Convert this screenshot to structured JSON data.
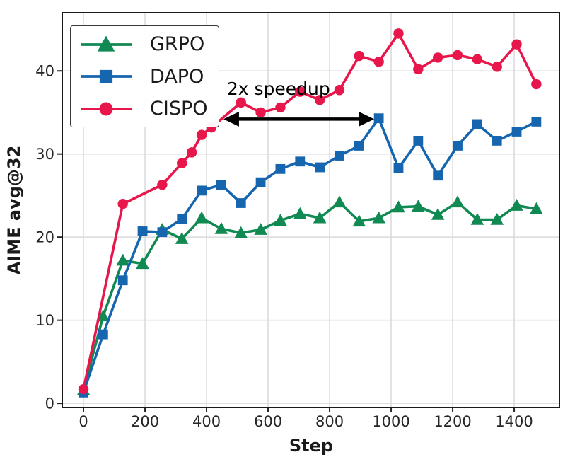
{
  "chart_data": {
    "type": "line",
    "title": "",
    "xlabel": "Step",
    "ylabel": "AIME avg@32",
    "xlim": [
      -69,
      1547
    ],
    "ylim": [
      -0.5,
      47.0
    ],
    "xticks": [
      0,
      200,
      400,
      600,
      800,
      1000,
      1200,
      1400
    ],
    "yticks": [
      0,
      10,
      20,
      30,
      40
    ],
    "grid": true,
    "legend_position": "upper-left",
    "series": [
      {
        "name": "GRPO",
        "color": "#108a52",
        "marker": "triangle-up",
        "x": [
          0,
          64,
          128,
          192,
          256,
          320,
          384,
          448,
          512,
          576,
          640,
          704,
          768,
          832,
          896,
          960,
          1024,
          1088,
          1152,
          1216,
          1280,
          1344,
          1408,
          1472
        ],
        "values": [
          1.6,
          10.5,
          17.2,
          16.8,
          20.9,
          19.8,
          22.3,
          21.0,
          20.5,
          20.9,
          22.0,
          22.8,
          22.3,
          24.2,
          21.9,
          22.3,
          23.6,
          23.7,
          22.7,
          24.2,
          22.1,
          22.1,
          23.8,
          23.4
        ]
      },
      {
        "name": "DAPO",
        "color": "#1565af",
        "marker": "square",
        "x": [
          0,
          64,
          128,
          192,
          256,
          320,
          384,
          448,
          512,
          576,
          640,
          704,
          768,
          832,
          896,
          960,
          1024,
          1088,
          1152,
          1216,
          1280,
          1344,
          1408,
          1472
        ],
        "values": [
          1.3,
          8.3,
          14.8,
          20.7,
          20.6,
          22.2,
          25.6,
          26.3,
          24.1,
          26.6,
          28.2,
          29.1,
          28.4,
          29.8,
          31.0,
          34.3,
          28.3,
          31.6,
          27.4,
          31.0,
          33.6,
          31.6,
          32.7,
          33.9
        ]
      },
      {
        "name": "CISPO",
        "color": "#e8174b",
        "marker": "circle",
        "x": [
          0,
          128,
          256,
          320,
          352,
          384,
          416,
          512,
          576,
          640,
          704,
          768,
          832,
          896,
          960,
          1024,
          1088,
          1152,
          1216,
          1280,
          1344,
          1408,
          1472
        ],
        "values": [
          1.7,
          24.0,
          26.3,
          28.9,
          30.2,
          32.3,
          33.2,
          36.2,
          35.0,
          35.6,
          37.5,
          36.5,
          37.7,
          41.8,
          41.1,
          44.5,
          40.2,
          41.6,
          41.9,
          41.4,
          40.5,
          43.2,
          38.4
        ]
      }
    ],
    "annotation": {
      "text": "2x speedup",
      "text_center": {
        "step": 634,
        "value": 37.9
      },
      "arrow": {
        "from_step": 455,
        "to_step": 945,
        "value": 34.2,
        "double_headed": true,
        "color": "#000000"
      }
    },
    "colors": {
      "background": "#ffffff",
      "grid": "#d9d9d9",
      "spine": "#1a1a1a",
      "tick_label": "#262626"
    }
  }
}
